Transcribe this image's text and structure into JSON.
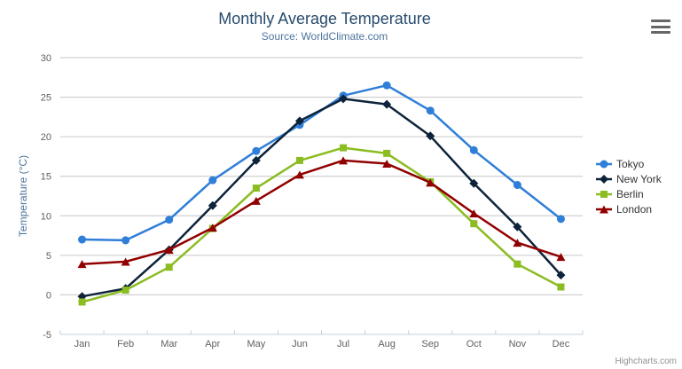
{
  "credits": "Highcharts.com",
  "colors": {
    "title": "#274b6d",
    "subtitle": "#4d759e",
    "axis_label": "#606060",
    "grid": "#c6c6c6",
    "axis_line": "#c0d0e0",
    "legend_text": "#333333",
    "credits": "#909090"
  },
  "export_menu": {
    "icon": "hamburger-menu-icon"
  },
  "chart_data": {
    "type": "line",
    "title": "Monthly Average Temperature",
    "subtitle": "Source: WorldClimate.com",
    "categories": [
      "Jan",
      "Feb",
      "Mar",
      "Apr",
      "May",
      "Jun",
      "Jul",
      "Aug",
      "Sep",
      "Oct",
      "Nov",
      "Dec"
    ],
    "xlabel": "",
    "ylabel": "Temperature (°C)",
    "ylim": [
      -5,
      30
    ],
    "ytick_interval": 5,
    "grid": true,
    "legend_position": "right",
    "series": [
      {
        "name": "Tokyo",
        "color": "#2f7ed8",
        "marker": "circle",
        "values": [
          7.0,
          6.9,
          9.5,
          14.5,
          18.2,
          21.5,
          25.2,
          26.5,
          23.3,
          18.3,
          13.9,
          9.6
        ]
      },
      {
        "name": "New York",
        "color": "#0d233a",
        "marker": "diamond",
        "values": [
          -0.2,
          0.8,
          5.7,
          11.3,
          17.0,
          22.0,
          24.8,
          24.1,
          20.1,
          14.1,
          8.6,
          2.5
        ]
      },
      {
        "name": "Berlin",
        "color": "#8bbc21",
        "marker": "square",
        "values": [
          -0.9,
          0.6,
          3.5,
          8.4,
          13.5,
          17.0,
          18.6,
          17.9,
          14.3,
          9.0,
          3.9,
          1.0
        ]
      },
      {
        "name": "London",
        "color": "#910000",
        "marker": "triangle",
        "values": [
          3.9,
          4.2,
          5.7,
          8.5,
          11.9,
          15.2,
          17.0,
          16.6,
          14.2,
          10.3,
          6.6,
          4.8
        ]
      }
    ]
  }
}
